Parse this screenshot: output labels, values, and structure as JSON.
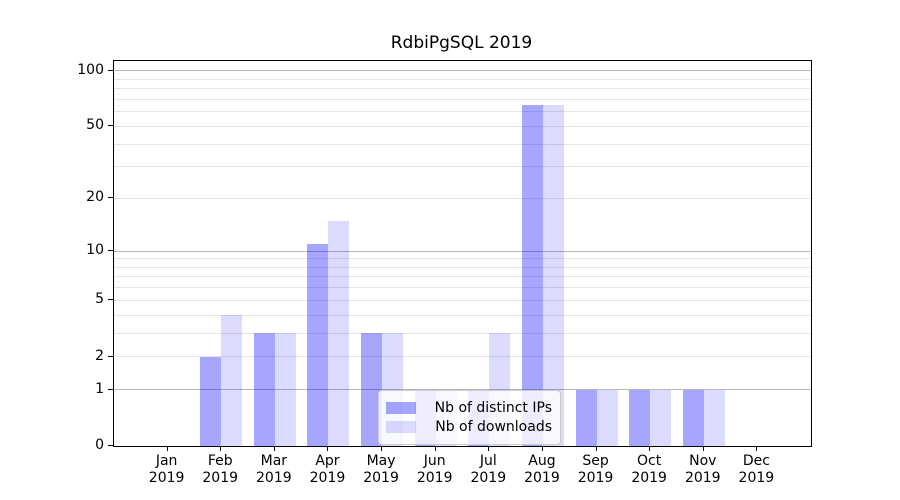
{
  "chart_data": {
    "type": "bar",
    "title": "RdbiPgSQL 2019",
    "categories": [
      "Jan",
      "Feb",
      "Mar",
      "Apr",
      "May",
      "Jun",
      "Jul",
      "Aug",
      "Sep",
      "Oct",
      "Nov",
      "Dec"
    ],
    "category_year": "2019",
    "series": [
      {
        "name": "Nb of distinct IPs",
        "color": "#a6a6fa",
        "css_color": "rgba(0,0,255,0.35)",
        "values": [
          0,
          2,
          3,
          11,
          3,
          1,
          1,
          65,
          1,
          1,
          1,
          0
        ]
      },
      {
        "name": "Nb of downloads",
        "color": "#dcdcfa",
        "css_color": "rgba(0,0,255,0.14)",
        "values": [
          0,
          4,
          3,
          15,
          3,
          1,
          3,
          65,
          1,
          1,
          1,
          0
        ]
      }
    ],
    "xlabel": "",
    "ylabel": "",
    "y_scale": "log1p",
    "ylim": [
      0,
      113
    ],
    "y_axis": {
      "tick_labels": [
        "0",
        "1",
        "2",
        "5",
        "10",
        "20",
        "50",
        "100"
      ],
      "tick_values": [
        0,
        1,
        2,
        5,
        10,
        20,
        50,
        100
      ],
      "major_grid": [
        1,
        10,
        100
      ],
      "minor_grid": [
        2,
        3,
        4,
        5,
        6,
        7,
        8,
        9,
        20,
        30,
        40,
        50,
        60,
        70,
        80,
        90
      ]
    },
    "grid": "on",
    "legend": {
      "position": "lower center",
      "entries": [
        "Nb of distinct IPs",
        "Nb of downloads"
      ]
    }
  },
  "colors": {
    "background": "#ffffff",
    "spine": "#000000",
    "text": "#000000",
    "major_grid": "#b8b8b8",
    "minor_grid": "#e5e5e5",
    "legend_border": "#cccccc",
    "legend_bg": "rgba(255,255,255,0.8)"
  }
}
